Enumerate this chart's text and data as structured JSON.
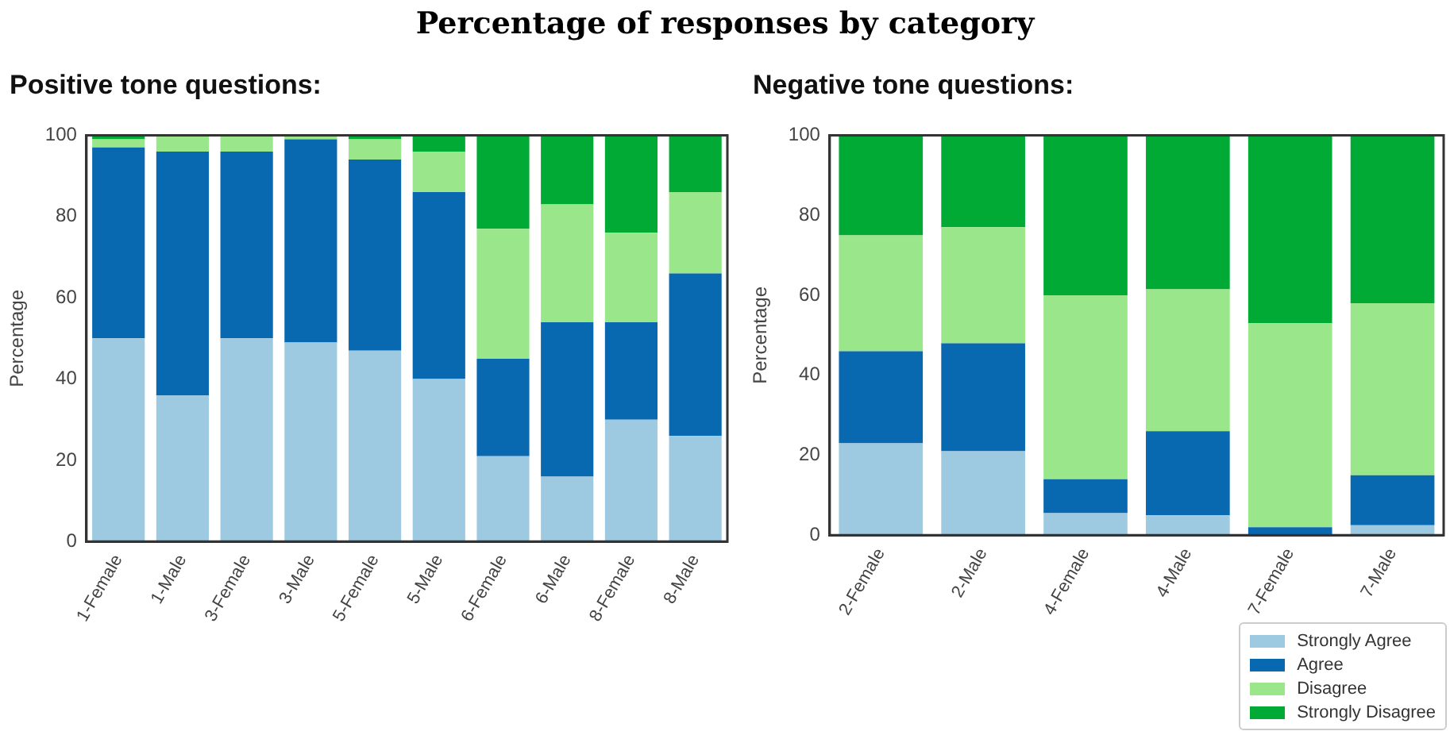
{
  "chart_data": [
    {
      "type": "bar",
      "title": "Positive tone questions:",
      "annotations": [
        "Percentage of responses by category"
      ],
      "ylabel": "Percentage",
      "stacked": true,
      "grid": false,
      "categories": [
        "1-Female",
        "1-Male",
        "3-Female",
        "3-Male",
        "5-Female",
        "5-Male",
        "6-Female",
        "6-Male",
        "8-Female",
        "8-Male"
      ],
      "ylim": [
        0,
        100
      ],
      "yticks": [
        0,
        20,
        40,
        60,
        80,
        100
      ],
      "series": [
        {
          "color": "#9ecae1",
          "values": [
            50,
            36,
            50,
            49,
            47,
            40,
            21,
            16,
            30,
            26
          ]
        },
        {
          "color": "#0868b0",
          "values": [
            47,
            60,
            46,
            50,
            47,
            46,
            24,
            38,
            24,
            40
          ]
        },
        {
          "color": "#9ae68a",
          "values": [
            2,
            4,
            4,
            1,
            5,
            10,
            32,
            29,
            22,
            20
          ]
        },
        {
          "color": "#00aa35",
          "values": [
            1,
            0,
            0,
            0,
            1,
            4,
            23,
            17,
            24,
            14
          ]
        }
      ]
    },
    {
      "type": "bar",
      "title": "Negative tone questions:",
      "ylabel": "Percentage",
      "stacked": true,
      "grid": false,
      "legend": "bottom right",
      "categories": [
        "2-Female",
        "2-Male",
        "4-Female",
        "4-Male",
        "7-Female",
        "7-Male"
      ],
      "ylim": [
        0,
        100
      ],
      "yticks": [
        0,
        20,
        40,
        60,
        80,
        100
      ],
      "series": [
        {
          "name": "Strongly Agree",
          "color": "#9ecae1",
          "values": [
            23,
            21,
            5.5,
            5,
            0,
            2.5
          ]
        },
        {
          "name": "Agree",
          "color": "#0868b0",
          "values": [
            23,
            27,
            8.5,
            21,
            2,
            12.5
          ]
        },
        {
          "name": "Disagree",
          "color": "#9ae68a",
          "values": [
            29,
            29,
            46,
            35.5,
            51,
            43
          ]
        },
        {
          "name": "Strongly Disagree",
          "color": "#00aa35",
          "values": [
            25,
            23,
            40,
            38.5,
            47,
            42
          ]
        }
      ]
    }
  ]
}
